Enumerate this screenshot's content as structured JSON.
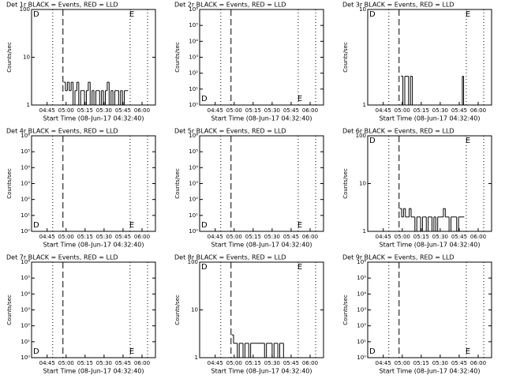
{
  "chart_data": [
    {
      "type": "line",
      "title": "Det 1r BLACK = Events, RED = LLD",
      "xlabel": "Start Time (08-Jun-17 04:32:40)",
      "ylabel": "Counts/sec",
      "log_y": true,
      "xlim": [
        272.7,
        370.6
      ],
      "xticks": [
        {
          "value": 285,
          "label": "04:45"
        },
        {
          "value": 300,
          "label": "05:00"
        },
        {
          "value": 315,
          "label": "05:15"
        },
        {
          "value": 330,
          "label": "05:30"
        },
        {
          "value": 345,
          "label": "05:45"
        },
        {
          "value": 360,
          "label": "06:00"
        }
      ],
      "ylim": [
        1,
        100
      ],
      "yticks": [
        1,
        10,
        100
      ],
      "annotations": [
        "D",
        "E"
      ],
      "vlines": [
        {
          "x": 289.4,
          "style": "dotted"
        },
        {
          "x": 297.5,
          "style": "dashed"
        },
        {
          "x": 350.6,
          "style": "dotted"
        },
        {
          "x": 364.4,
          "style": "dotted"
        }
      ],
      "x": [
        298,
        299.5,
        301,
        302.5,
        304,
        305.5,
        307,
        308.5,
        310,
        311.5,
        313,
        314.5,
        316,
        317.5,
        319,
        320.5,
        322,
        323.5,
        325,
        326.5,
        328,
        329.5,
        331,
        332.5,
        334,
        335.5,
        337,
        338.5,
        340,
        341.5,
        343,
        344.5,
        346,
        347.5
      ],
      "values": [
        3,
        2,
        3,
        2,
        3,
        1,
        2,
        3,
        1,
        2,
        2,
        1,
        2,
        3,
        1,
        2,
        1,
        2,
        2,
        1,
        2,
        1,
        2,
        3,
        1,
        2,
        1,
        2,
        2,
        1,
        2,
        1,
        2,
        2
      ],
      "color": "#000000"
    },
    {
      "type": "line",
      "title": "Det 2r BLACK = Events, RED = LLD",
      "xlabel": "Start Time (08-Jun-17 04:32:40)",
      "ylabel": "Counts/sec",
      "log_y": true,
      "xlim": [
        272.7,
        370.6
      ],
      "xticks": [
        {
          "value": 285,
          "label": "04:45"
        },
        {
          "value": 300,
          "label": "05:00"
        },
        {
          "value": 315,
          "label": "05:15"
        },
        {
          "value": 330,
          "label": "05:30"
        },
        {
          "value": 345,
          "label": "05:45"
        },
        {
          "value": 360,
          "label": "06:00"
        }
      ],
      "ylim": [
        1,
        1000000
      ],
      "yticks": [
        {
          "value": 1,
          "label": "10⁰"
        },
        {
          "value": 10,
          "label": "10¹"
        },
        {
          "value": 100,
          "label": "10²"
        },
        {
          "value": 1000,
          "label": "10³"
        },
        {
          "value": 10000,
          "label": "10⁴"
        },
        {
          "value": 100000,
          "label": "10⁵"
        },
        {
          "value": 1000000,
          "label": "10⁶"
        }
      ],
      "annotations": [
        "D",
        "E"
      ],
      "vlines": [
        {
          "x": 289.4,
          "style": "dotted"
        },
        {
          "x": 297.5,
          "style": "dashed"
        },
        {
          "x": 350.6,
          "style": "dotted"
        },
        {
          "x": 364.4,
          "style": "dotted"
        }
      ],
      "x": [],
      "values": [],
      "color": "#000000"
    },
    {
      "type": "line",
      "title": "Det 3r BLACK = Events, RED = LLD",
      "xlabel": "Start Time (08-Jun-17 04:32:40)",
      "ylabel": "Counts/sec",
      "log_y": true,
      "xlim": [
        272.7,
        370.6
      ],
      "xticks": [
        {
          "value": 285,
          "label": "04:45"
        },
        {
          "value": 300,
          "label": "05:00"
        },
        {
          "value": 315,
          "label": "05:15"
        },
        {
          "value": 330,
          "label": "05:30"
        },
        {
          "value": 345,
          "label": "05:45"
        },
        {
          "value": 360,
          "label": "06:00"
        }
      ],
      "ylim": [
        1,
        10
      ],
      "yticks": [
        1,
        10
      ],
      "annotations": [
        "D",
        "E"
      ],
      "vlines": [
        {
          "x": 289.4,
          "style": "dotted"
        },
        {
          "x": 297.5,
          "style": "dashed"
        },
        {
          "x": 350.6,
          "style": "dotted"
        },
        {
          "x": 364.4,
          "style": "dotted"
        }
      ],
      "x": [
        299,
        300.5,
        302,
        303.5,
        305,
        306.5,
        308,
        347.5,
        348.5
      ],
      "values": [
        2,
        1,
        2,
        2,
        1,
        2,
        1,
        2,
        1
      ],
      "color": "#000000"
    },
    {
      "type": "line",
      "title": "Det 4r BLACK = Events, RED = LLD",
      "xlabel": "Start Time (08-Jun-17 04:32:40)",
      "ylabel": "Counts/sec",
      "log_y": true,
      "xlim": [
        272.7,
        370.6
      ],
      "xticks": [
        {
          "value": 285,
          "label": "04:45"
        },
        {
          "value": 300,
          "label": "05:00"
        },
        {
          "value": 315,
          "label": "05:15"
        },
        {
          "value": 330,
          "label": "05:30"
        },
        {
          "value": 345,
          "label": "05:45"
        },
        {
          "value": 360,
          "label": "06:00"
        }
      ],
      "ylim": [
        1,
        1000000
      ],
      "yticks": [
        {
          "value": 1,
          "label": "10⁰"
        },
        {
          "value": 10,
          "label": "10¹"
        },
        {
          "value": 100,
          "label": "10²"
        },
        {
          "value": 1000,
          "label": "10³"
        },
        {
          "value": 10000,
          "label": "10⁴"
        },
        {
          "value": 100000,
          "label": "10⁵"
        },
        {
          "value": 1000000,
          "label": "10⁶"
        }
      ],
      "annotations": [
        "D",
        "E"
      ],
      "vlines": [
        {
          "x": 289.4,
          "style": "dotted"
        },
        {
          "x": 297.5,
          "style": "dashed"
        },
        {
          "x": 350.6,
          "style": "dotted"
        },
        {
          "x": 364.4,
          "style": "dotted"
        }
      ],
      "x": [],
      "values": [],
      "color": "#000000"
    },
    {
      "type": "line",
      "title": "Det 5r BLACK = Events, RED = LLD",
      "xlabel": "Start Time (08-Jun-17 04:32:40)",
      "ylabel": "Counts/sec",
      "log_y": true,
      "xlim": [
        272.7,
        370.6
      ],
      "xticks": [
        {
          "value": 285,
          "label": "04:45"
        },
        {
          "value": 300,
          "label": "05:00"
        },
        {
          "value": 315,
          "label": "05:15"
        },
        {
          "value": 330,
          "label": "05:30"
        },
        {
          "value": 345,
          "label": "05:45"
        },
        {
          "value": 360,
          "label": "06:00"
        }
      ],
      "ylim": [
        1,
        1000000
      ],
      "yticks": [
        {
          "value": 1,
          "label": "10⁰"
        },
        {
          "value": 10,
          "label": "10¹"
        },
        {
          "value": 100,
          "label": "10²"
        },
        {
          "value": 1000,
          "label": "10³"
        },
        {
          "value": 10000,
          "label": "10⁴"
        },
        {
          "value": 100000,
          "label": "10⁵"
        },
        {
          "value": 1000000,
          "label": "10⁶"
        }
      ],
      "annotations": [
        "D",
        "E"
      ],
      "vlines": [
        {
          "x": 289.4,
          "style": "dotted"
        },
        {
          "x": 297.5,
          "style": "dashed"
        },
        {
          "x": 350.6,
          "style": "dotted"
        },
        {
          "x": 364.4,
          "style": "dotted"
        }
      ],
      "x": [],
      "values": [],
      "color": "#000000"
    },
    {
      "type": "line",
      "title": "Det 6r BLACK = Events, RED = LLD",
      "xlabel": "Start Time (08-Jun-17 04:32:40)",
      "ylabel": "Counts/sec",
      "log_y": true,
      "xlim": [
        272.7,
        370.6
      ],
      "xticks": [
        {
          "value": 285,
          "label": "04:45"
        },
        {
          "value": 300,
          "label": "05:00"
        },
        {
          "value": 315,
          "label": "05:15"
        },
        {
          "value": 330,
          "label": "05:30"
        },
        {
          "value": 345,
          "label": "05:45"
        },
        {
          "value": 360,
          "label": "06:00"
        }
      ],
      "ylim": [
        1,
        100
      ],
      "yticks": [
        1,
        10,
        100
      ],
      "annotations": [
        "D",
        "E"
      ],
      "vlines": [
        {
          "x": 289.4,
          "style": "dotted"
        },
        {
          "x": 297.5,
          "style": "dashed"
        },
        {
          "x": 350.6,
          "style": "dotted"
        },
        {
          "x": 364.4,
          "style": "dotted"
        }
      ],
      "x": [
        298,
        299.5,
        301,
        302.5,
        304,
        305.5,
        307,
        308.5,
        310,
        311.5,
        313,
        314.5,
        316,
        317.5,
        319,
        320.5,
        322,
        323.5,
        325,
        326.5,
        328,
        329.5,
        331,
        332.5,
        334,
        335.5,
        337,
        338.5,
        340,
        341.5,
        343,
        344.5,
        346,
        347.5
      ],
      "values": [
        3,
        2,
        3,
        2,
        2,
        3,
        2,
        2,
        1,
        2,
        2,
        1,
        2,
        2,
        1,
        2,
        2,
        1,
        2,
        1,
        2,
        2,
        2,
        3,
        2,
        2,
        1,
        2,
        2,
        2,
        1,
        2,
        2,
        2
      ],
      "color": "#000000"
    },
    {
      "type": "line",
      "title": "Det 7r BLACK = Events, RED = LLD",
      "xlabel": "Start Time (08-Jun-17 04:32:40)",
      "ylabel": "Counts/sec",
      "log_y": true,
      "xlim": [
        272.7,
        370.6
      ],
      "xticks": [
        {
          "value": 285,
          "label": "04:45"
        },
        {
          "value": 300,
          "label": "05:00"
        },
        {
          "value": 315,
          "label": "05:15"
        },
        {
          "value": 330,
          "label": "05:30"
        },
        {
          "value": 345,
          "label": "05:45"
        },
        {
          "value": 360,
          "label": "06:00"
        }
      ],
      "ylim": [
        1,
        1000000
      ],
      "yticks": [
        {
          "value": 1,
          "label": "10⁰"
        },
        {
          "value": 10,
          "label": "10¹"
        },
        {
          "value": 100,
          "label": "10²"
        },
        {
          "value": 1000,
          "label": "10³"
        },
        {
          "value": 10000,
          "label": "10⁴"
        },
        {
          "value": 100000,
          "label": "10⁵"
        },
        {
          "value": 1000000,
          "label": "10⁶"
        }
      ],
      "annotations": [
        "D",
        "E"
      ],
      "vlines": [
        {
          "x": 289.4,
          "style": "dotted"
        },
        {
          "x": 297.5,
          "style": "dashed"
        },
        {
          "x": 350.6,
          "style": "dotted"
        },
        {
          "x": 364.4,
          "style": "dotted"
        }
      ],
      "x": [],
      "values": [],
      "color": "#000000"
    },
    {
      "type": "line",
      "title": "Det 8r BLACK = Events, RED = LLD",
      "xlabel": "Start Time (08-Jun-17 04:32:40)",
      "ylabel": "Counts/sec",
      "log_y": true,
      "xlim": [
        272.7,
        370.6
      ],
      "xticks": [
        {
          "value": 285,
          "label": "04:45"
        },
        {
          "value": 300,
          "label": "05:00"
        },
        {
          "value": 315,
          "label": "05:15"
        },
        {
          "value": 330,
          "label": "05:30"
        },
        {
          "value": 345,
          "label": "05:45"
        },
        {
          "value": 360,
          "label": "06:00"
        }
      ],
      "ylim": [
        1,
        100
      ],
      "yticks": [
        1,
        10,
        100
      ],
      "annotations": [
        "D",
        "E"
      ],
      "vlines": [
        {
          "x": 289.4,
          "style": "dotted"
        },
        {
          "x": 297.5,
          "style": "dashed"
        },
        {
          "x": 350.6,
          "style": "dotted"
        },
        {
          "x": 364.4,
          "style": "dotted"
        }
      ],
      "x": [
        298,
        299.5,
        301,
        302.5,
        304,
        305.5,
        307,
        308.5,
        310,
        311.5,
        313,
        324,
        325.5,
        327,
        328.5,
        330,
        331.5,
        333,
        334.5,
        336,
        337.5,
        339
      ],
      "values": [
        3,
        2,
        2,
        1,
        2,
        2,
        1,
        2,
        2,
        1,
        2,
        1,
        2,
        2,
        2,
        1,
        2,
        2,
        1,
        2,
        2,
        1
      ],
      "color": "#000000"
    },
    {
      "type": "line",
      "title": "Det 9r BLACK = Events, RED = LLD",
      "xlabel": "Start Time (08-Jun-17 04:32:40)",
      "ylabel": "Counts/sec",
      "log_y": true,
      "xlim": [
        272.7,
        370.6
      ],
      "xticks": [
        {
          "value": 285,
          "label": "04:45"
        },
        {
          "value": 300,
          "label": "05:00"
        },
        {
          "value": 315,
          "label": "05:15"
        },
        {
          "value": 330,
          "label": "05:30"
        },
        {
          "value": 345,
          "label": "05:45"
        },
        {
          "value": 360,
          "label": "06:00"
        }
      ],
      "ylim": [
        1,
        1000000
      ],
      "yticks": [
        {
          "value": 1,
          "label": "10⁰"
        },
        {
          "value": 10,
          "label": "10¹"
        },
        {
          "value": 100,
          "label": "10²"
        },
        {
          "value": 1000,
          "label": "10³"
        },
        {
          "value": 10000,
          "label": "10⁴"
        },
        {
          "value": 100000,
          "label": "10⁵"
        },
        {
          "value": 1000000,
          "label": "10⁶"
        }
      ],
      "annotations": [
        "D",
        "E"
      ],
      "vlines": [
        {
          "x": 289.4,
          "style": "dotted"
        },
        {
          "x": 297.5,
          "style": "dashed"
        },
        {
          "x": 350.6,
          "style": "dotted"
        },
        {
          "x": 364.4,
          "style": "dotted"
        }
      ],
      "x": [],
      "values": [],
      "color": "#000000"
    }
  ]
}
